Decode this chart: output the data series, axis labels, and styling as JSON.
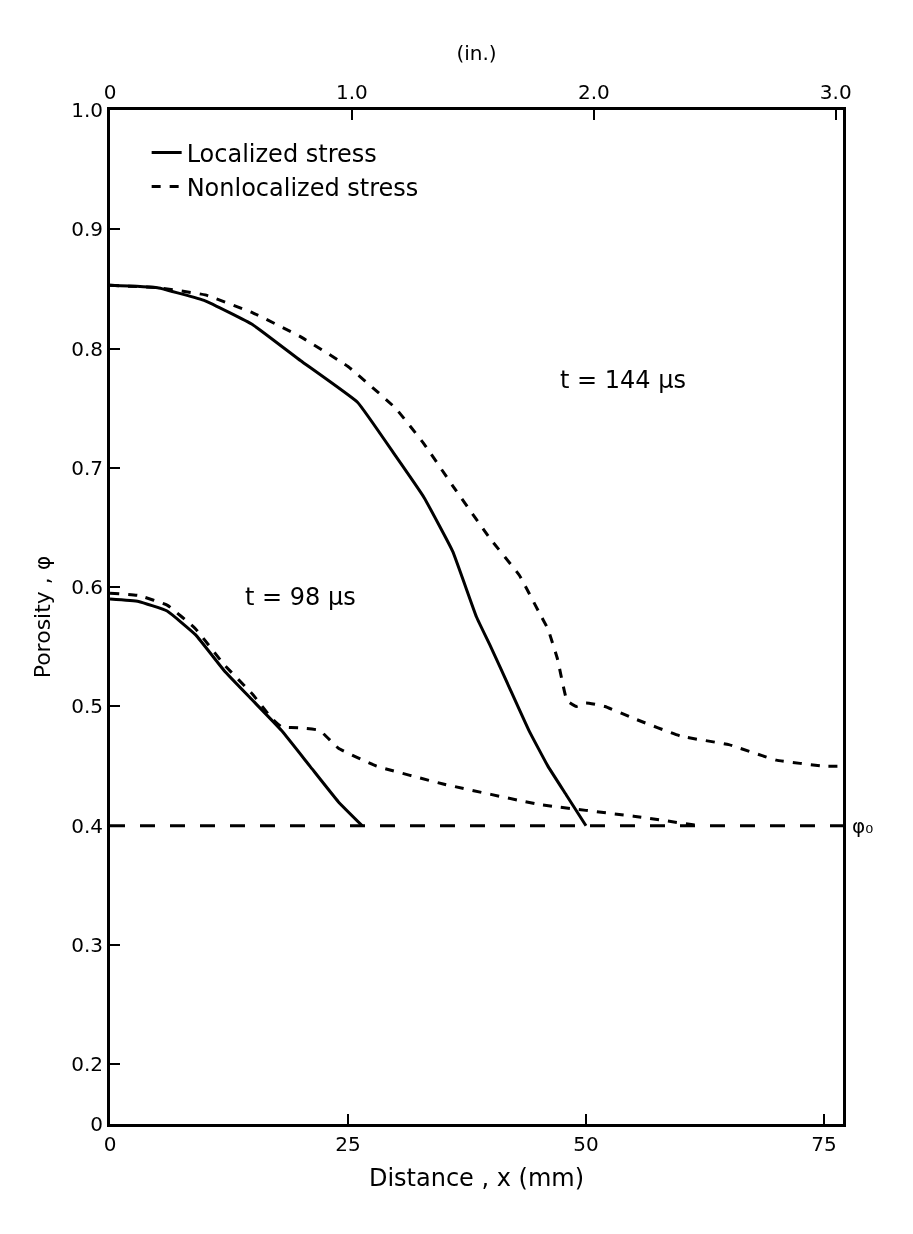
{
  "chart_data": {
    "type": "line",
    "xlabel": "Distance , x (mm)",
    "ylabel": "Porosity , φ",
    "x2label": "(in.)",
    "xlim": [
      0,
      77
    ],
    "xticks": [
      0,
      25,
      50,
      75
    ],
    "x2lim": [
      0,
      3.03
    ],
    "x2ticks": [
      0,
      {
        "value": 1.0,
        "label": "1.0"
      },
      {
        "value": 2.0,
        "label": "2.0"
      },
      {
        "value": 3.0,
        "label": "3.0"
      }
    ],
    "ylim": [
      0.15,
      1.0
    ],
    "yticks": [
      {
        "value": 0.15,
        "label": "0"
      },
      0.2,
      0.3,
      0.4,
      0.5,
      0.6,
      0.7,
      0.8,
      0.9,
      {
        "value": 1.0,
        "label": "1.0"
      }
    ],
    "legend": "top left",
    "marker": "none",
    "series": [
      {
        "name": "Localized stress",
        "color": "#000000",
        "line_style": "solid",
        "x": [
          0,
          5,
          10,
          15,
          20,
          26,
          30,
          33,
          36,
          38.5,
          40,
          42,
          44,
          46,
          48,
          50
        ],
        "values": [
          0.853,
          0.851,
          0.84,
          0.82,
          0.79,
          0.755,
          0.71,
          0.675,
          0.63,
          0.575,
          0.55,
          0.515,
          0.48,
          0.45,
          0.425,
          0.4
        ]
      },
      {
        "name": "Nonlocalized stress",
        "color": "#000000",
        "line_style": "dashed",
        "x": [
          0,
          5,
          10,
          15,
          20,
          25,
          30,
          33,
          36,
          40,
          43,
          45,
          46,
          47,
          48,
          49,
          50,
          52,
          55,
          60,
          65,
          70,
          75,
          77
        ],
        "values": [
          0.853,
          0.851,
          0.845,
          0.83,
          0.81,
          0.785,
          0.75,
          0.72,
          0.685,
          0.64,
          0.61,
          0.58,
          0.565,
          0.54,
          0.505,
          0.5,
          0.503,
          0.5,
          0.49,
          0.475,
          0.468,
          0.455,
          0.45,
          0.45
        ]
      },
      {
        "color": "#000000",
        "line_style": "solid",
        "x": [
          0,
          3,
          6,
          9,
          12,
          15,
          18,
          21,
          24,
          26.5
        ],
        "values": [
          0.59,
          0.588,
          0.58,
          0.56,
          0.53,
          0.505,
          0.48,
          0.45,
          0.42,
          0.4
        ]
      },
      {
        "color": "#000000",
        "line_style": "dashed",
        "x": [
          0,
          3,
          6,
          9,
          12,
          15,
          17,
          18,
          20,
          22,
          24,
          28,
          35,
          45,
          55,
          62
        ],
        "values": [
          0.595,
          0.593,
          0.585,
          0.565,
          0.535,
          0.51,
          0.49,
          0.483,
          0.482,
          0.48,
          0.465,
          0.45,
          0.435,
          0.418,
          0.408,
          0.4
        ]
      }
    ],
    "ref_lines": [
      {
        "axis": "y",
        "value": 0.4,
        "label": "φ₀",
        "color": "#000000",
        "line_style": "dashed"
      }
    ],
    "annotations": [
      "t = 144 μs",
      "t = 98 μs"
    ]
  }
}
